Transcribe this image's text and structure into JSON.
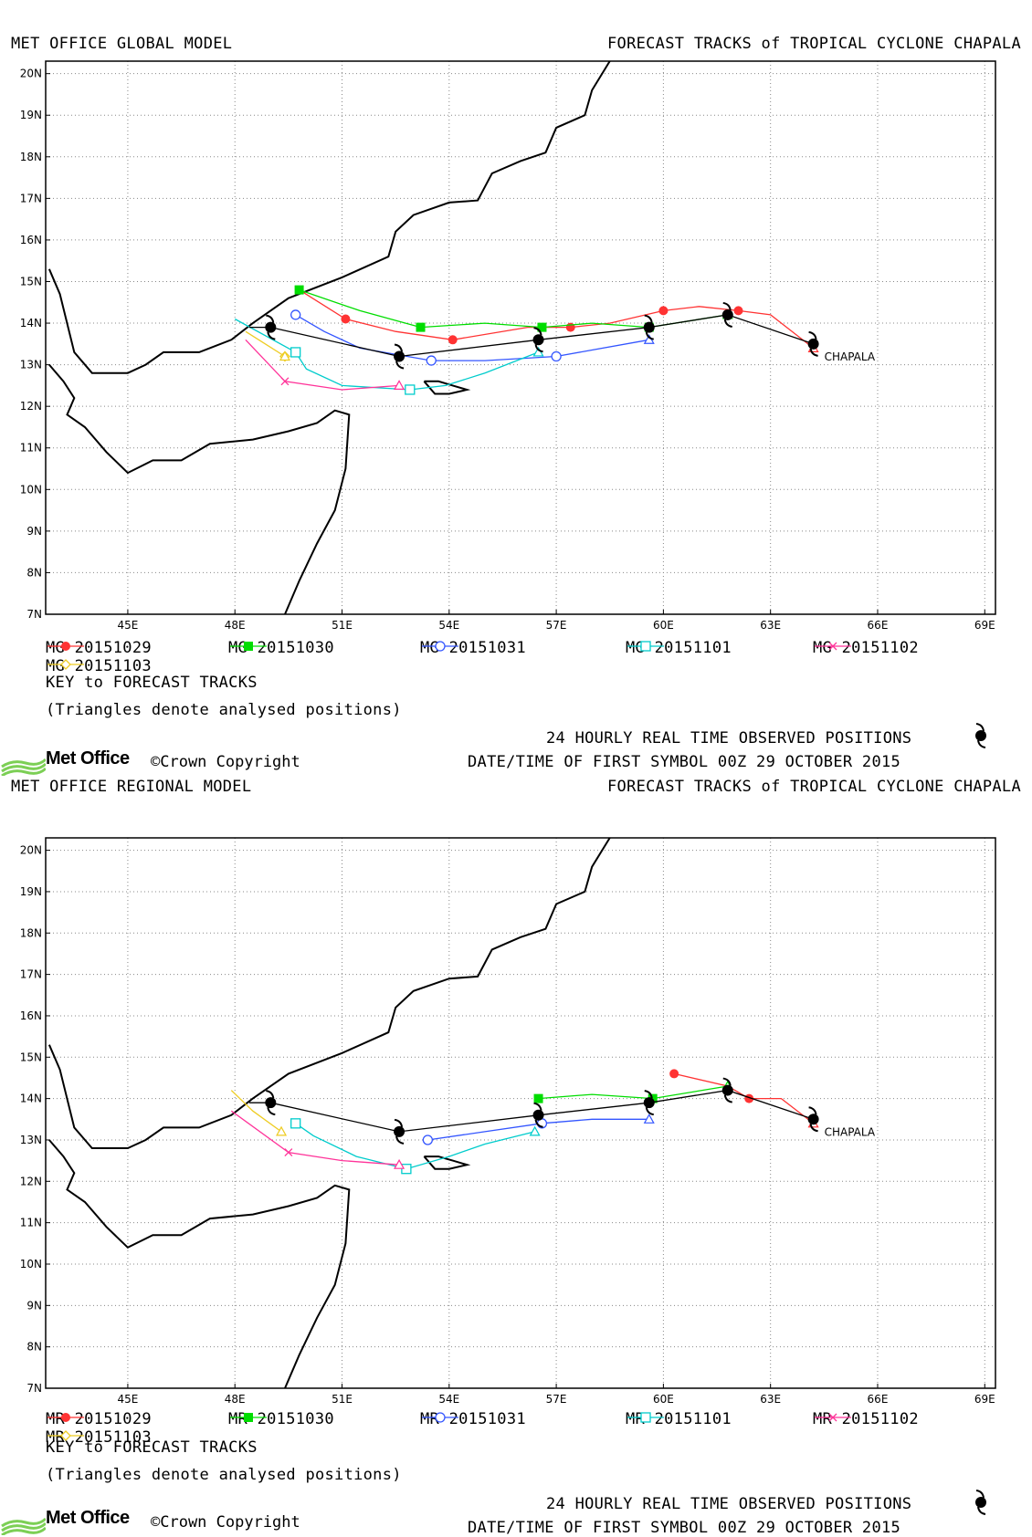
{
  "panels": [
    {
      "model_title": "MET OFFICE GLOBAL MODEL",
      "forecast_title": "FORECAST TRACKS of TROPICAL CYCLONE CHAPALA",
      "storm_label": "CHAPALA",
      "legend": [
        {
          "label": "MG 20151029",
          "color": "#ff3333",
          "marker": "filled-circle"
        },
        {
          "label": "MG 20151030",
          "color": "#00dd00",
          "marker": "filled-square"
        },
        {
          "label": "MG 20151031",
          "color": "#3355ff",
          "marker": "open-circle"
        },
        {
          "label": "MG 20151101",
          "color": "#00cccc",
          "marker": "open-square"
        },
        {
          "label": "MG 20151102",
          "color": "#ff3399",
          "marker": "x"
        },
        {
          "label": "MG 20151103",
          "color": "#eecc22",
          "marker": "diamond"
        }
      ],
      "key_label": "KEY to FORECAST TRACKS",
      "triangle_note": "(Triangles denote analysed positions)",
      "observed_label": "24 HOURLY REAL TIME OBSERVED POSITIONS",
      "datetime_label": "DATE/TIME OF FIRST SYMBOL 00Z 29 OCTOBER 2015",
      "logo_text": "Met Office",
      "copyright": "©Crown Copyright"
    },
    {
      "model_title": "MET OFFICE REGIONAL MODEL",
      "forecast_title": "FORECAST TRACKS of TROPICAL CYCLONE CHAPALA",
      "storm_label": "CHAPALA",
      "legend": [
        {
          "label": "MR 20151029",
          "color": "#ff3333",
          "marker": "filled-circle"
        },
        {
          "label": "MR 20151030",
          "color": "#00dd00",
          "marker": "filled-square"
        },
        {
          "label": "MR 20151031",
          "color": "#3355ff",
          "marker": "open-circle"
        },
        {
          "label": "MR 20151101",
          "color": "#00cccc",
          "marker": "open-square"
        },
        {
          "label": "MR 20151102",
          "color": "#ff3399",
          "marker": "x"
        },
        {
          "label": "MR 20151103",
          "color": "#eecc22",
          "marker": "diamond"
        }
      ],
      "key_label": "KEY to FORECAST TRACKS",
      "triangle_note": "(Triangles denote analysed positions)",
      "observed_label": "24 HOURLY REAL TIME OBSERVED POSITIONS",
      "datetime_label": "DATE/TIME OF FIRST SYMBOL 00Z 29 OCTOBER 2015",
      "logo_text": "Met Office",
      "copyright": "©Crown Copyright"
    }
  ],
  "chart_data": [
    {
      "type": "line",
      "title": "FORECAST TRACKS of TROPICAL CYCLONE CHAPALA",
      "xlim": [
        42.7,
        69.3
      ],
      "ylim": [
        7,
        20.3
      ],
      "x_ticks": [
        "45E",
        "48E",
        "51E",
        "54E",
        "57E",
        "60E",
        "63E",
        "66E",
        "69E"
      ],
      "y_ticks": [
        "7N",
        "8N",
        "9N",
        "10N",
        "11N",
        "12N",
        "13N",
        "14N",
        "15N",
        "16N",
        "17N",
        "18N",
        "19N",
        "20N"
      ],
      "grid": true,
      "observed_track": [
        [
          64.2,
          13.5
        ],
        [
          61.8,
          14.2
        ],
        [
          59.6,
          13.9
        ],
        [
          56.5,
          13.6
        ],
        [
          52.6,
          13.2
        ],
        [
          49.0,
          13.9
        ],
        [
          48.4,
          13.9
        ]
      ],
      "series": [
        {
          "name": "MG 20151029",
          "color": "#ff3333",
          "points": [
            [
              64.2,
              13.4
            ],
            [
              63.0,
              14.2
            ],
            [
              62.1,
              14.3
            ],
            [
              61.0,
              14.4
            ],
            [
              60.0,
              14.3
            ],
            [
              58.5,
              14.0
            ],
            [
              57.4,
              13.9
            ],
            [
              56.2,
              13.9
            ],
            [
              54.1,
              13.6
            ],
            [
              52.5,
              13.8
            ],
            [
              51.1,
              14.1
            ],
            [
              49.8,
              14.8
            ]
          ],
          "marked": [
            [
              62.1,
              14.3
            ],
            [
              60.0,
              14.3
            ],
            [
              57.4,
              13.9
            ],
            [
              54.1,
              13.6
            ],
            [
              51.1,
              14.1
            ]
          ]
        },
        {
          "name": "MG 20151030",
          "color": "#00dd00",
          "points": [
            [
              61.8,
              14.2
            ],
            [
              59.6,
              13.9
            ],
            [
              58.0,
              14.0
            ],
            [
              56.6,
              13.9
            ],
            [
              55.0,
              14.0
            ],
            [
              53.2,
              13.9
            ],
            [
              51.5,
              14.3
            ],
            [
              49.8,
              14.8
            ]
          ],
          "marked": [
            [
              59.6,
              13.9
            ],
            [
              56.6,
              13.9
            ],
            [
              53.2,
              13.9
            ],
            [
              49.8,
              14.8
            ]
          ]
        },
        {
          "name": "MG 20151031",
          "color": "#3355ff",
          "points": [
            [
              59.6,
              13.6
            ],
            [
              57.0,
              13.2
            ],
            [
              55.0,
              13.1
            ],
            [
              53.5,
              13.1
            ],
            [
              51.5,
              13.4
            ],
            [
              50.5,
              13.8
            ],
            [
              49.7,
              14.2
            ]
          ],
          "marked": [
            [
              57.0,
              13.2
            ],
            [
              53.5,
              13.1
            ],
            [
              49.7,
              14.2
            ]
          ]
        },
        {
          "name": "MG 20151101",
          "color": "#00cccc",
          "points": [
            [
              56.5,
              13.3
            ],
            [
              55.0,
              12.8
            ],
            [
              53.9,
              12.5
            ],
            [
              52.9,
              12.4
            ],
            [
              51.0,
              12.5
            ],
            [
              50.0,
              12.9
            ],
            [
              49.7,
              13.3
            ],
            [
              48.0,
              14.1
            ]
          ],
          "marked": [
            [
              52.9,
              12.4
            ],
            [
              49.7,
              13.3
            ]
          ]
        },
        {
          "name": "MG 20151102",
          "color": "#ff3399",
          "points": [
            [
              52.6,
              12.5
            ],
            [
              51.0,
              12.4
            ],
            [
              49.4,
              12.6
            ],
            [
              48.3,
              13.6
            ]
          ],
          "marked": [
            [
              49.4,
              12.6
            ]
          ]
        },
        {
          "name": "MG 20151103",
          "color": "#eecc22",
          "points": [
            [
              49.4,
              13.2
            ],
            [
              48.3,
              13.8
            ]
          ],
          "marked": [
            [
              49.4,
              13.2
            ]
          ]
        }
      ]
    },
    {
      "type": "line",
      "title": "FORECAST TRACKS of TROPICAL CYCLONE CHAPALA",
      "xlim": [
        42.7,
        69.3
      ],
      "ylim": [
        7,
        20.3
      ],
      "x_ticks": [
        "45E",
        "48E",
        "51E",
        "54E",
        "57E",
        "60E",
        "63E",
        "66E",
        "69E"
      ],
      "y_ticks": [
        "7N",
        "8N",
        "9N",
        "10N",
        "11N",
        "12N",
        "13N",
        "14N",
        "15N",
        "16N",
        "17N",
        "18N",
        "19N",
        "20N"
      ],
      "grid": true,
      "observed_track": [
        [
          64.2,
          13.5
        ],
        [
          61.8,
          14.2
        ],
        [
          59.6,
          13.9
        ],
        [
          56.5,
          13.6
        ],
        [
          52.6,
          13.2
        ],
        [
          49.0,
          13.9
        ],
        [
          48.4,
          13.9
        ]
      ],
      "series": [
        {
          "name": "MR 20151029",
          "color": "#ff3333",
          "points": [
            [
              64.2,
              13.4
            ],
            [
              63.3,
              14.0
            ],
            [
              62.4,
              14.0
            ],
            [
              61.8,
              14.3
            ],
            [
              60.3,
              14.6
            ]
          ],
          "marked": [
            [
              62.4,
              14.0
            ],
            [
              60.3,
              14.6
            ]
          ]
        },
        {
          "name": "MR 20151030",
          "color": "#00dd00",
          "points": [
            [
              61.8,
              14.3
            ],
            [
              59.7,
              14.0
            ],
            [
              58.0,
              14.1
            ],
            [
              56.5,
              14.0
            ]
          ],
          "marked": [
            [
              59.7,
              14.0
            ],
            [
              56.5,
              14.0
            ]
          ]
        },
        {
          "name": "MR 20151031",
          "color": "#3355ff",
          "points": [
            [
              59.6,
              13.5
            ],
            [
              58.0,
              13.5
            ],
            [
              56.6,
              13.4
            ],
            [
              55.0,
              13.2
            ],
            [
              53.4,
              13.0
            ]
          ],
          "marked": [
            [
              56.6,
              13.4
            ],
            [
              53.4,
              13.0
            ]
          ]
        },
        {
          "name": "MR 20151101",
          "color": "#00cccc",
          "points": [
            [
              56.4,
              13.2
            ],
            [
              55.0,
              12.9
            ],
            [
              54.0,
              12.6
            ],
            [
              52.8,
              12.3
            ],
            [
              51.4,
              12.6
            ],
            [
              50.2,
              13.1
            ],
            [
              49.7,
              13.4
            ]
          ],
          "marked": [
            [
              52.8,
              12.3
            ],
            [
              49.7,
              13.4
            ]
          ]
        },
        {
          "name": "MR 20151102",
          "color": "#ff3399",
          "points": [
            [
              52.6,
              12.4
            ],
            [
              51.0,
              12.5
            ],
            [
              49.5,
              12.7
            ],
            [
              47.9,
              13.7
            ]
          ],
          "marked": [
            [
              49.5,
              12.7
            ]
          ]
        },
        {
          "name": "MR 20151103",
          "color": "#eecc22",
          "points": [
            [
              49.3,
              13.2
            ],
            [
              48.5,
              13.7
            ],
            [
              47.9,
              14.2
            ]
          ],
          "marked": []
        }
      ]
    }
  ]
}
